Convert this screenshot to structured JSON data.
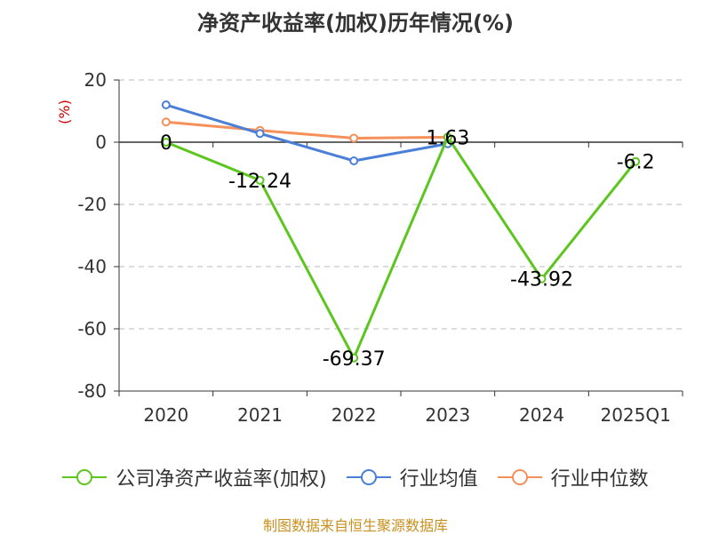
{
  "chart_data": {
    "type": "line",
    "title": "净资产收益率(加权)历年情况(%)",
    "ylabel": "(%)",
    "categories": [
      "2020",
      "2021",
      "2022",
      "2023",
      "2024",
      "2025Q1"
    ],
    "ylim": [
      -80,
      20
    ],
    "yticks": [
      20,
      0,
      -20,
      -40,
      -60,
      -80
    ],
    "grid": true,
    "legend_position": "bottom",
    "series": [
      {
        "name": "公司净资产收益率(加权)",
        "color": "#5cc61f",
        "values": [
          0,
          -12.24,
          -69.37,
          1.63,
          -43.92,
          -6.2
        ],
        "labels": [
          "0",
          "-12.24",
          "-69.37",
          "1.63",
          "-43.92",
          "-6.2"
        ]
      },
      {
        "name": "行业均值",
        "color": "#4a7fd8",
        "values": [
          12,
          2.8,
          -6,
          -0.5,
          null,
          null
        ]
      },
      {
        "name": "行业中位数",
        "color": "#f5905a",
        "values": [
          6.5,
          3.8,
          1.3,
          1.6,
          null,
          null
        ]
      }
    ]
  },
  "source": "制图数据来自恒生聚源数据库"
}
